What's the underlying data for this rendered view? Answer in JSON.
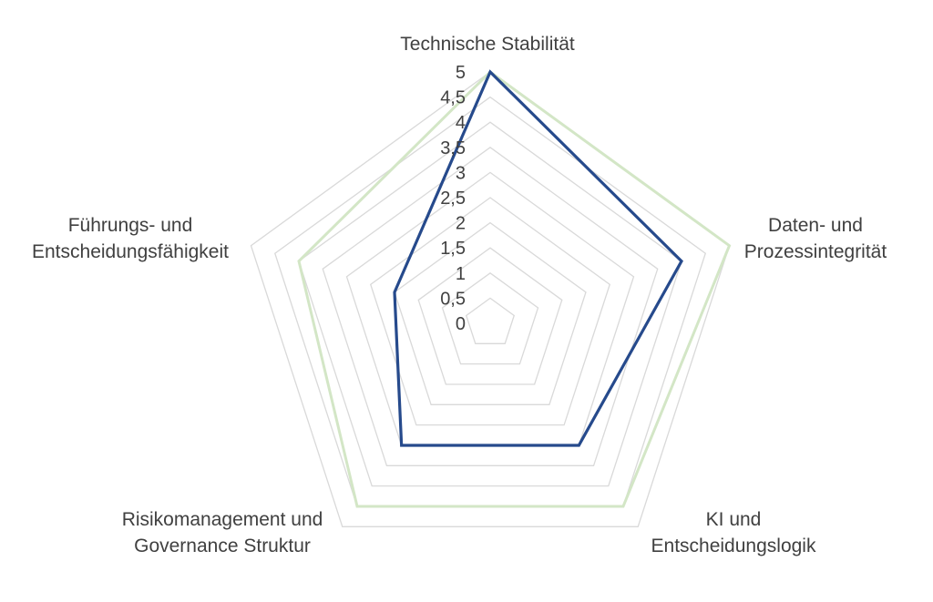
{
  "chart_data": {
    "type": "radar",
    "categories": [
      "Technische Stabilität",
      "Daten- und Prozessintegrität",
      "KI und Entscheidungslogik",
      "Risikomanagement und Governance Struktur",
      "Führungs- und Entscheidungsfähigkeit"
    ],
    "category_lines": [
      [
        "Technische Stabilität"
      ],
      [
        "Daten- und",
        "Prozessintegrität"
      ],
      [
        "KI und",
        "Entscheidungslogik"
      ],
      [
        "Risikomanagement und",
        "Governance Struktur"
      ],
      [
        "Führungs- und",
        "Entscheidungsfähigkeit"
      ]
    ],
    "rmin": 0,
    "rmax": 5,
    "ticks": [
      "0",
      "0,5",
      "1",
      "1,5",
      "2",
      "2,5",
      "3",
      "3,5",
      "4",
      "4,5",
      "5"
    ],
    "grid": true,
    "legend": "none",
    "series": [
      {
        "values": [
          5,
          4,
          3,
          3,
          2
        ],
        "color": "#264a8c"
      },
      {
        "values": [
          5,
          5,
          4.5,
          4.5,
          4
        ],
        "color": "#d3e6c6"
      }
    ]
  }
}
